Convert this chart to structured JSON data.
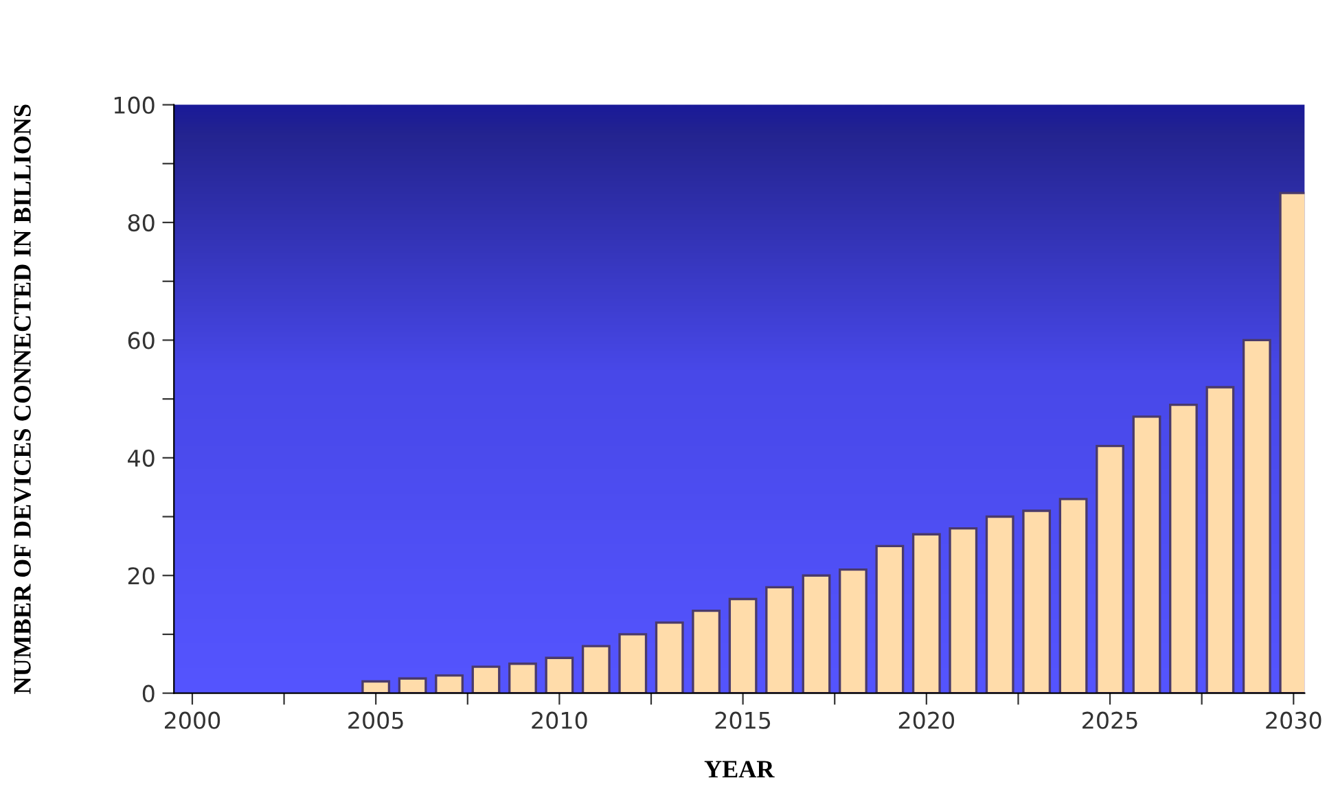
{
  "chart_data": {
    "type": "bar",
    "xlabel": "YEAR",
    "ylabel": "NUMBER OF DEVICES CONNECTED IN BILLIONS",
    "x": [
      2005,
      2006,
      2007,
      2008,
      2009,
      2010,
      2011,
      2012,
      2013,
      2014,
      2015,
      2016,
      2017,
      2018,
      2019,
      2020,
      2021,
      2022,
      2023,
      2024,
      2025,
      2026,
      2027,
      2028,
      2029,
      2030
    ],
    "values": [
      2,
      2.5,
      3,
      4.5,
      5,
      6,
      8,
      10,
      12,
      14,
      16,
      18,
      20,
      21,
      25,
      27,
      28,
      30,
      31,
      33,
      42,
      47,
      49,
      52,
      60,
      85
    ],
    "color": "#ffdcaa",
    "xlim": [
      1999.5,
      2030.3
    ],
    "xticks": [
      2000,
      {
        "value": 2002.5,
        "label": null
      },
      2005,
      {
        "value": 2007.5,
        "label": null
      },
      2010,
      {
        "value": 2012.5,
        "label": null
      },
      2015,
      {
        "value": 2017.5,
        "label": null
      },
      2020,
      {
        "value": 2022.5,
        "label": null
      },
      2025,
      {
        "value": 2027.5,
        "label": null
      },
      2030
    ],
    "ylim": [
      0,
      100
    ],
    "yticks": [
      0,
      {
        "value": 10,
        "label": null
      },
      20,
      {
        "value": 30,
        "label": null
      },
      40,
      {
        "value": 50,
        "label": null
      },
      60,
      {
        "value": 70,
        "label": null
      },
      80,
      {
        "value": 90,
        "label": null
      },
      100
    ],
    "grid": false,
    "legend": false
  }
}
